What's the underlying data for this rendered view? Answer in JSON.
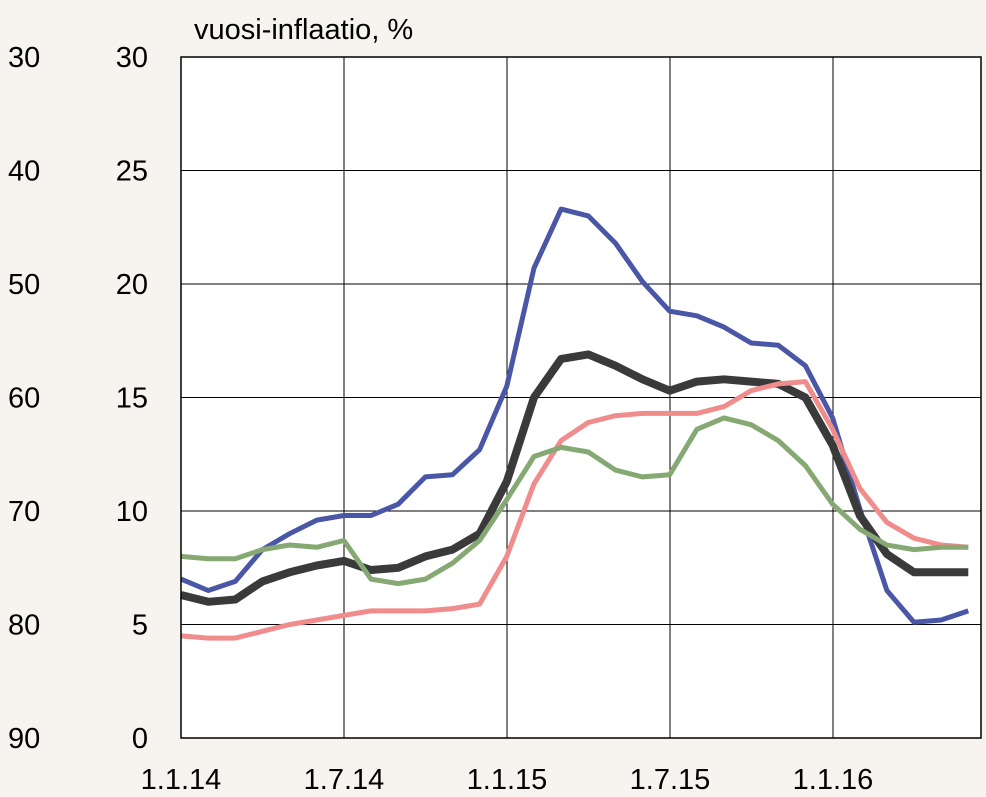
{
  "chart_data": {
    "type": "line",
    "title": "vuosi-inflaatio, %",
    "xlabel": "",
    "ylabel": "",
    "x_tick_labels": [
      "1.1.14",
      "1.7.14",
      "1.1.15",
      "1.7.15",
      "1.1.16"
    ],
    "y_left_ticks": [
      "30",
      "40",
      "50",
      "60",
      "70",
      "80",
      "90"
    ],
    "y_right_ticks": [
      "30",
      "25",
      "20",
      "15",
      "10",
      "5",
      "0"
    ],
    "ylim": [
      0,
      30
    ],
    "grid": true,
    "legend": "none",
    "colors": [
      "#4a56a6",
      "#3a3a3a",
      "#f08c8c",
      "#86a873"
    ],
    "series": [
      {
        "values": [
          7.0,
          6.5,
          6.9,
          8.3,
          9.0,
          9.6,
          9.8,
          9.8,
          10.3,
          11.5,
          11.6,
          12.7,
          15.5,
          20.7,
          23.3,
          23.0,
          21.8,
          20.1,
          18.8,
          18.6,
          18.1,
          17.4,
          17.3,
          16.4,
          14.1,
          10.1,
          6.5,
          5.1,
          5.2,
          5.6
        ]
      },
      {
        "values": [
          6.3,
          6.0,
          6.1,
          6.9,
          7.3,
          7.6,
          7.8,
          7.4,
          7.5,
          8.0,
          8.3,
          9.0,
          11.3,
          15.0,
          16.7,
          16.9,
          16.4,
          15.8,
          15.3,
          15.7,
          15.8,
          15.7,
          15.6,
          15.0,
          12.9,
          9.8,
          8.1,
          7.3,
          7.3,
          7.3
        ]
      },
      {
        "values": [
          4.5,
          4.4,
          4.4,
          4.7,
          5.0,
          5.2,
          5.4,
          5.6,
          5.6,
          5.6,
          5.7,
          5.9,
          8.0,
          11.2,
          13.1,
          13.9,
          14.2,
          14.3,
          14.3,
          14.3,
          14.6,
          15.3,
          15.6,
          15.7,
          13.6,
          11.0,
          9.5,
          8.8,
          8.5,
          8.4
        ]
      },
      {
        "values": [
          8.0,
          7.9,
          7.9,
          8.3,
          8.5,
          8.4,
          8.7,
          7.0,
          6.8,
          7.0,
          7.7,
          8.7,
          10.5,
          12.4,
          12.8,
          12.6,
          11.8,
          11.5,
          11.6,
          13.6,
          14.1,
          13.8,
          13.1,
          12.0,
          10.3,
          9.2,
          8.5,
          8.3,
          8.4,
          8.4
        ]
      }
    ]
  }
}
